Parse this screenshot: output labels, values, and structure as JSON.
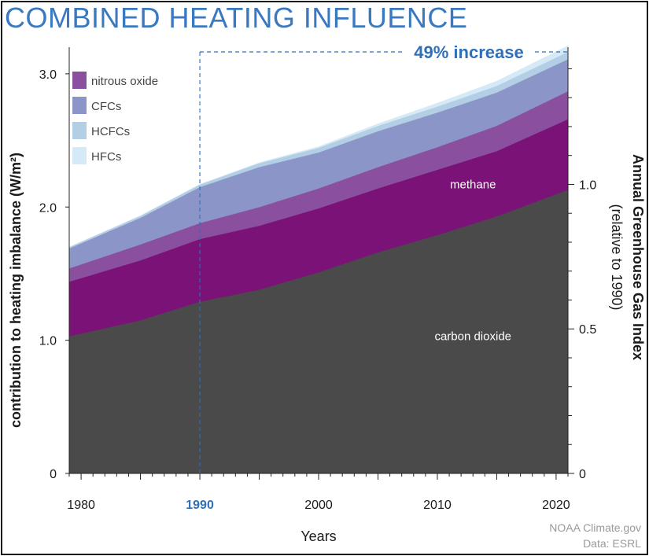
{
  "title": "COMBINED HEATING INFLUENCE",
  "credits": {
    "line1": "NOAA Climate.gov",
    "line2": "Data: ESRL"
  },
  "colors": {
    "carbon_dioxide": "#4a4a4a",
    "methane": "#7b1277",
    "nitrous_oxide": "#8a4f9f",
    "cfcs": "#8c95c8",
    "hcfcs": "#b3cfe5",
    "hfcs": "#d6e9f7",
    "accent": "#2f6fba",
    "axis_text": "#1a1a1a"
  },
  "chart_data": {
    "type": "area",
    "stacked": true,
    "xlabel": "Years",
    "ylabel": "contribution to heating imbalance (W/m²)",
    "y2label": [
      "Annual Greenhouse Gas Index",
      "(relative to 1990)"
    ],
    "xlim": [
      1979,
      2021
    ],
    "ylim": [
      0,
      3.2
    ],
    "x_ticks": [
      1980,
      1990,
      2000,
      2010,
      2020
    ],
    "highlight_x_tick": 1990,
    "y_ticks": [
      {
        "value": 0,
        "label": "0"
      },
      {
        "value": 1.0,
        "label": "1.0"
      },
      {
        "value": 2.0,
        "label": "2.0"
      },
      {
        "value": 3.0,
        "label": "3.0"
      }
    ],
    "y2_ticks": [
      {
        "index": 0,
        "label": "0"
      },
      {
        "index": 0.5,
        "label": "0.5"
      },
      {
        "index": 1.0,
        "label": "1.0"
      }
    ],
    "y2_reference": 2.17,
    "x": [
      1979,
      1985,
      1990,
      1995,
      2000,
      2005,
      2010,
      2015,
      2021
    ],
    "series": [
      {
        "name": "carbon dioxide",
        "color_key": "carbon_dioxide",
        "label_inside": true,
        "values": [
          1.03,
          1.15,
          1.29,
          1.38,
          1.51,
          1.66,
          1.79,
          1.93,
          2.13
        ]
      },
      {
        "name": "methane",
        "color_key": "methane",
        "label_inside": true,
        "values": [
          0.41,
          0.45,
          0.47,
          0.48,
          0.48,
          0.48,
          0.49,
          0.49,
          0.53
        ]
      },
      {
        "name": "nitrous oxide",
        "color_key": "nitrous_oxide",
        "label_inside": false,
        "values": [
          0.1,
          0.12,
          0.12,
          0.14,
          0.15,
          0.16,
          0.17,
          0.19,
          0.21
        ]
      },
      {
        "name": "CFCs",
        "color_key": "cfcs",
        "label_inside": false,
        "values": [
          0.15,
          0.2,
          0.27,
          0.3,
          0.27,
          0.27,
          0.26,
          0.25,
          0.24
        ]
      },
      {
        "name": "HCFCs",
        "color_key": "hcfcs",
        "label_inside": false,
        "values": [
          0.01,
          0.015,
          0.02,
          0.03,
          0.035,
          0.04,
          0.045,
          0.05,
          0.055
        ]
      },
      {
        "name": "HFCs",
        "color_key": "hfcs",
        "label_inside": false,
        "values": [
          0.0,
          0.0,
          0.0,
          0.003,
          0.008,
          0.015,
          0.025,
          0.035,
          0.045
        ]
      }
    ],
    "annotations": [
      {
        "text": "49% increase",
        "from_x": 1990,
        "to_x": 2021,
        "style": "dashed-bracket"
      }
    ],
    "legend": {
      "placement": "top-left",
      "entries": [
        "nitrous oxide",
        "CFCs",
        "HCFCs",
        "HFCs"
      ]
    },
    "grid": false
  }
}
